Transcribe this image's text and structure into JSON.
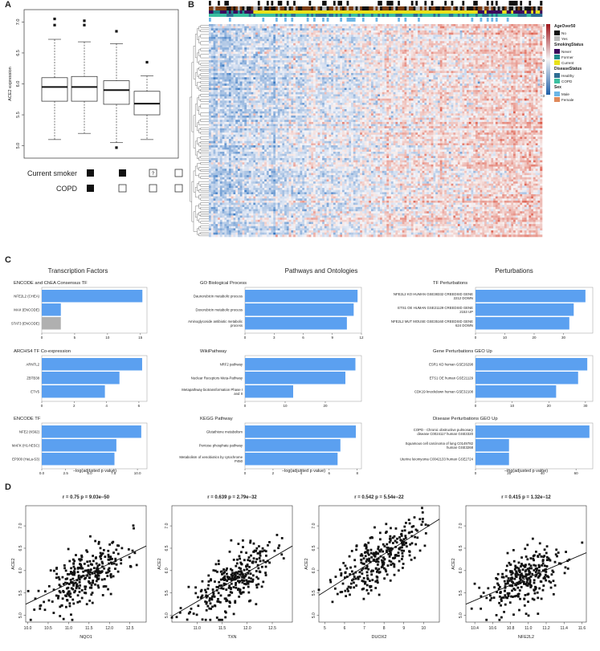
{
  "labels": {
    "A": "A",
    "B": "B",
    "C": "C",
    "D": "D"
  },
  "panelA": {
    "ylabel": "ACE2 expression",
    "ylim": [
      4.8,
      7.2
    ],
    "yticks": [
      "5.0",
      "5.5",
      "6.0",
      "6.5",
      "7.0"
    ],
    "boxes": [
      {
        "q1": 5.72,
        "med": 5.95,
        "q3": 6.1,
        "lo": 5.1,
        "hi": 6.72,
        "out": [
          7.05,
          6.95
        ]
      },
      {
        "q1": 5.72,
        "med": 5.95,
        "q3": 6.12,
        "lo": 5.2,
        "hi": 6.68,
        "out": [
          7.02,
          6.95
        ]
      },
      {
        "q1": 5.67,
        "med": 5.9,
        "q3": 6.05,
        "lo": 5.05,
        "hi": 6.65,
        "out": [
          6.85,
          4.97
        ]
      },
      {
        "q1": 5.5,
        "med": 5.68,
        "q3": 5.88,
        "lo": 5.1,
        "hi": 6.13,
        "out": [
          6.35
        ]
      }
    ],
    "rows": [
      {
        "label": "Current smoker",
        "marks": [
          "filled",
          "filled",
          "?",
          "open"
        ]
      },
      {
        "label": "COPD",
        "marks": [
          "filled",
          "open",
          "open",
          "open"
        ]
      }
    ]
  },
  "panelB": {
    "legend": [
      {
        "title": "AgeOver50",
        "items": [
          {
            "label": "No",
            "color": "#111111"
          },
          {
            "label": "Yes",
            "color": "#bbbbbb"
          }
        ]
      },
      {
        "title": "SmokingStatus",
        "items": [
          {
            "label": "Never",
            "color": "#3b0a5c"
          },
          {
            "label": "Former",
            "color": "#1f8c8c"
          },
          {
            "label": "Current",
            "color": "#e8e21a"
          }
        ]
      },
      {
        "title": "DiseaseStatus",
        "items": [
          {
            "label": "Healthy",
            "color": "#2f6e93"
          },
          {
            "label": "COPD",
            "color": "#3bbfa0"
          }
        ]
      },
      {
        "title": "Sex",
        "items": [
          {
            "label": "Male",
            "color": "#6cb6e6"
          },
          {
            "label": "Female",
            "color": "#e0895a"
          }
        ]
      }
    ],
    "scale_ticks": [
      "3",
      "2",
      "1",
      "0",
      "−1",
      "−2",
      "−3"
    ]
  },
  "panelC": {
    "columns": [
      {
        "title": "Transcription Factors",
        "xlabel": "",
        "groups": [
          {
            "title": "ENCODE and ChEA Consensus TF",
            "xticks": [
              "0",
              "5",
              "10",
              "15"
            ],
            "xmax": 16,
            "bars": [
              {
                "label": "NFE2L2 (CHEA)",
                "value": 15.3,
                "color": "#5ba0f0"
              },
              {
                "label": "MAX (ENCODE)",
                "value": 2.9,
                "color": "#5ba0f0"
              },
              {
                "label": "STAT3 (ENCODE)",
                "value": 2.9,
                "color": "#b0b0b0"
              }
            ]
          },
          {
            "title": "ARCHS4 TF Co-expression",
            "xticks": [
              "0",
              "2",
              "4",
              "6"
            ],
            "xmax": 6.5,
            "bars": [
              {
                "label": "ARNTL2",
                "value": 6.2,
                "color": "#5ba0f0"
              },
              {
                "label": "ZBTB38",
                "value": 4.8,
                "color": "#5ba0f0"
              },
              {
                "label": "ETV5",
                "value": 3.9,
                "color": "#5ba0f0"
              }
            ]
          },
          {
            "title": "ENCODE TF",
            "xticks": [
              "0.0",
              "2.5",
              "5.0",
              "7.5",
              "10.0"
            ],
            "xmax": 11,
            "bars": [
              {
                "label": "NFE2 (K562)",
                "value": 10.4,
                "color": "#5ba0f0"
              },
              {
                "label": "MAFK (H1-hESC)",
                "value": 7.8,
                "color": "#5ba0f0"
              },
              {
                "label": "EP300 (HeLa-S3)",
                "value": 7.6,
                "color": "#5ba0f0"
              }
            ]
          }
        ]
      },
      {
        "title": "Pathways and Ontologies",
        "groups": [
          {
            "title": "GO Biological Process",
            "xticks": [
              "0",
              "3",
              "6",
              "9",
              "12"
            ],
            "xmax": 12,
            "bars": [
              {
                "label": "Daunorubicin metabolic process",
                "value": 11.6,
                "color": "#5ba0f0"
              },
              {
                "label": "Doxorubicin metabolic process",
                "value": 11.2,
                "color": "#5ba0f0"
              },
              {
                "label": "Aminoglycoside antibiotic metabolic process",
                "value": 10.5,
                "color": "#5ba0f0"
              }
            ]
          },
          {
            "title": "WikiPathway",
            "xticks": [
              "0",
              "10",
              "20"
            ],
            "xmax": 29,
            "bars": [
              {
                "label": "NRF2 pathway",
                "value": 27.5,
                "color": "#5ba0f0"
              },
              {
                "label": "Nuclear Receptors Meta-Pathway",
                "value": 25,
                "color": "#5ba0f0"
              },
              {
                "label": "Metapathway biotransformation Phase I and II",
                "value": 12,
                "color": "#5ba0f0"
              }
            ]
          },
          {
            "title": "KEGG Pathway",
            "xticks": [
              "0",
              "2",
              "4",
              "6",
              "8"
            ],
            "xmax": 8.3,
            "bars": [
              {
                "label": "Glutathione metabolism",
                "value": 7.9,
                "color": "#5ba0f0"
              },
              {
                "label": "Pentose phosphate pathway",
                "value": 6.8,
                "color": "#5ba0f0"
              },
              {
                "label": "Metabolism of xenobiotics by cytochrome P450",
                "value": 6.6,
                "color": "#5ba0f0"
              }
            ]
          }
        ],
        "xlabel": "−log(adjusted p value)"
      },
      {
        "title": "Perturbations",
        "groups": [
          {
            "title": "TF Perturbations",
            "xticks": [
              "0",
              "10",
              "20",
              "30"
            ],
            "xmax": 40,
            "bars": [
              {
                "label": "NFE2L2 KO HUMAN GSE38332 CREEDSID GENE 2212 DOWN",
                "value": 37.5,
                "color": "#5ba0f0"
              },
              {
                "label": "ETS1 OE HUMAN GSE21129 CREEDSID GENE 2153 UP",
                "value": 33.5,
                "color": "#5ba0f0"
              },
              {
                "label": "NFE2L2 MUT MOUSE GSE35160 CREEDSID GENE 624 DOWN",
                "value": 32,
                "color": "#5ba0f0"
              }
            ]
          },
          {
            "title": "Gene Perturbations GEO Up",
            "xticks": [
              "0",
              "10",
              "20",
              "30"
            ],
            "xmax": 32,
            "bars": [
              {
                "label": "ESR1 KD human GSE26298",
                "value": 30.5,
                "color": "#5ba0f0"
              },
              {
                "label": "ETS1 OE human GSE21129",
                "value": 28,
                "color": "#5ba0f0"
              },
              {
                "label": "CDK19 knockdown human GSE32108",
                "value": 22,
                "color": "#5ba0f0"
              }
            ]
          },
          {
            "title": "Disease Perturbations GEO Up",
            "xticks": [
              "0",
              "20",
              "40",
              "60"
            ],
            "xmax": 70,
            "bars": [
              {
                "label": "COPD - Chronic obstructive pulmonary disease C0024117 human GSE3320",
                "value": 68,
                "color": "#5ba0f0"
              },
              {
                "label": "Squamous cell carcinoma of lung C0149782 human GSE3268",
                "value": 20,
                "color": "#5ba0f0"
              },
              {
                "label": "Uterine leiomyoma C0042133 human GSE2724",
                "value": 20,
                "color": "#5ba0f0"
              }
            ]
          }
        ]
      }
    ]
  },
  "chart_data": [
    {
      "type": "scatter",
      "title": "r = 0.75 p = 9.03e−50",
      "xlabel": "NQO1",
      "ylabel": "ACE2",
      "xlim": [
        9.95,
        12.9
      ],
      "ylim": [
        4.85,
        7.45
      ],
      "xticks": [
        "10.0",
        "10.5",
        "11.0",
        "11.5",
        "12.0",
        "12.5"
      ],
      "yticks": [
        "5.0",
        "5.5",
        "6.0",
        "6.5",
        "7.0"
      ],
      "fit": [
        [
          9.95,
          5.25
        ],
        [
          12.9,
          6.55
        ]
      ],
      "seed": 11,
      "n": 300
    },
    {
      "type": "scatter",
      "title": "r = 0.639 p = 2.79e−32",
      "xlabel": "TXN",
      "ylabel": "ACE2",
      "xlim": [
        10.5,
        12.9
      ],
      "ylim": [
        4.85,
        7.45
      ],
      "xticks": [
        "11.0",
        "11.5",
        "12.0",
        "12.5"
      ],
      "yticks": [
        "5.0",
        "5.5",
        "6.0",
        "6.5",
        "7.0"
      ],
      "fit": [
        [
          10.5,
          4.98
        ],
        [
          12.9,
          6.55
        ]
      ],
      "seed": 23,
      "n": 300
    },
    {
      "type": "scatter",
      "title": "r = 0.542 p = 5.54e−22",
      "xlabel": "DUOX2",
      "ylabel": "ACE2",
      "xlim": [
        4.7,
        10.8
      ],
      "ylim": [
        4.85,
        7.45
      ],
      "xticks": [
        "5",
        "6",
        "7",
        "8",
        "9",
        "10"
      ],
      "yticks": [
        "5.0",
        "5.5",
        "6.0",
        "6.5",
        "7.0"
      ],
      "fit": [
        [
          4.7,
          5.45
        ],
        [
          10.8,
          7.15
        ]
      ],
      "seed": 37,
      "n": 300
    },
    {
      "type": "scatter",
      "title": "r = 0.415 p = 1.32e−12",
      "xlabel": "NFE2L2",
      "ylabel": "ACE2",
      "xlim": [
        10.3,
        11.65
      ],
      "ylim": [
        4.85,
        7.45
      ],
      "xticks": [
        "10.4",
        "10.6",
        "10.8",
        "11.0",
        "11.2",
        "11.4",
        "11.6"
      ],
      "yticks": [
        "5.0",
        "5.5",
        "6.0",
        "6.5",
        "7.0"
      ],
      "fit": [
        [
          10.3,
          5.25
        ],
        [
          11.65,
          6.4
        ]
      ],
      "seed": 53,
      "n": 300
    }
  ]
}
